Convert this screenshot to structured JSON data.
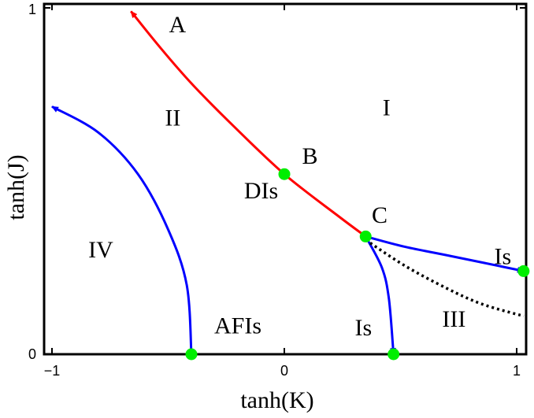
{
  "chart_data": {
    "type": "line",
    "xlabel": "tanh(K)",
    "ylabel": "tanh(J)",
    "xlim": [
      -1,
      1
    ],
    "ylim": [
      0,
      1
    ],
    "x_ticks": [
      -1,
      0,
      1
    ],
    "x_tick_labels": [
      "−1",
      "0",
      "1"
    ],
    "y_ticks": [
      0,
      1
    ],
    "y_tick_labels": [
      "0",
      "1"
    ],
    "grid": false,
    "series": [
      {
        "color": "#ff0000",
        "style": "solid",
        "arrow_end": true,
        "points": [
          [
            0.35,
            0.34
          ],
          [
            0.23,
            0.4
          ],
          [
            0.0,
            0.52
          ],
          [
            -0.21,
            0.653
          ],
          [
            -0.39,
            0.775
          ],
          [
            -0.53,
            0.882
          ],
          [
            -0.66,
            0.99
          ]
        ]
      },
      {
        "color": "#0000ff",
        "style": "solid",
        "arrow_end": true,
        "points": [
          [
            -0.4,
            0.0
          ],
          [
            -0.42,
            0.2
          ],
          [
            -0.5,
            0.36
          ],
          [
            -0.63,
            0.52
          ],
          [
            -0.8,
            0.64
          ],
          [
            -1.0,
            0.715
          ]
        ]
      },
      {
        "color": "#0000ff",
        "style": "solid",
        "arrow_end": true,
        "points": [
          [
            0.35,
            0.34
          ],
          [
            0.42,
            0.25
          ],
          [
            0.45,
            0.16
          ],
          [
            0.47,
            0.0
          ]
        ]
      },
      {
        "color": "#0000ff",
        "style": "solid",
        "arrow_end": true,
        "points": [
          [
            0.35,
            0.34
          ],
          [
            0.52,
            0.31
          ],
          [
            0.72,
            0.283
          ],
          [
            1.03,
            0.24
          ]
        ]
      },
      {
        "color": "#000000",
        "style": "dotted",
        "arrow_end": false,
        "points": [
          [
            0.35,
            0.33
          ],
          [
            0.52,
            0.255
          ],
          [
            0.7,
            0.19
          ],
          [
            0.85,
            0.145
          ],
          [
            1.03,
            0.11
          ]
        ]
      }
    ],
    "points": [
      {
        "label": "B",
        "x": 0.0,
        "y": 0.52
      },
      {
        "label": "C",
        "x": 0.35,
        "y": 0.34
      },
      {
        "label": "",
        "x": -0.4,
        "y": 0.0
      },
      {
        "label": "",
        "x": 0.47,
        "y": 0.0
      },
      {
        "label": "",
        "x": 1.03,
        "y": 0.24
      }
    ],
    "point_color": "#00ee00",
    "annotations": [
      {
        "text": "A",
        "x": -0.46,
        "y": 0.93
      },
      {
        "text": "B",
        "x": 0.11,
        "y": 0.55
      },
      {
        "text": "C",
        "x": 0.41,
        "y": 0.38
      },
      {
        "text": "I",
        "x": 0.44,
        "y": 0.69
      },
      {
        "text": "II",
        "x": -0.48,
        "y": 0.66
      },
      {
        "text": "III",
        "x": 0.73,
        "y": 0.08
      },
      {
        "text": "IV",
        "x": -0.79,
        "y": 0.28
      },
      {
        "text": "DIs",
        "x": -0.1,
        "y": 0.45
      },
      {
        "text": "AFIs",
        "x": -0.2,
        "y": 0.06
      },
      {
        "text": "Is",
        "x": 0.34,
        "y": 0.055
      },
      {
        "text": "Is",
        "x": 0.94,
        "y": 0.26
      }
    ]
  }
}
